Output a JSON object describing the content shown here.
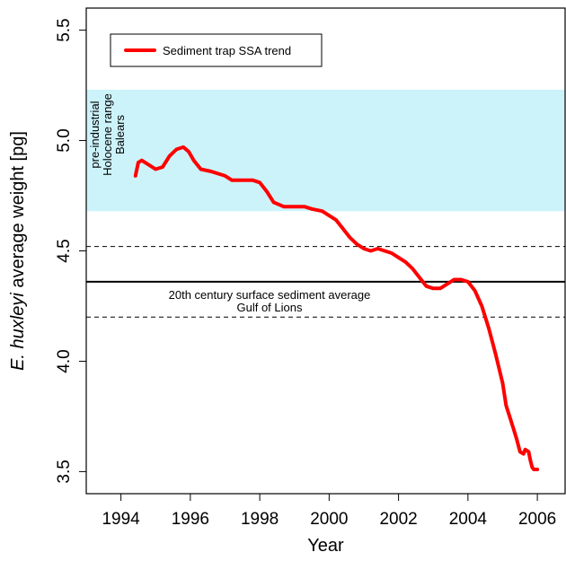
{
  "chart_data": {
    "type": "line",
    "xlabel": "Year",
    "ylabel_italic": "E. huxleyi",
    "ylabel_rest": " average weight [pg]",
    "xlim": [
      1993.0,
      2006.8
    ],
    "ylim": [
      3.4,
      5.6
    ],
    "x_ticks": [
      1994,
      1996,
      1998,
      2000,
      2002,
      2004,
      2006
    ],
    "y_ticks": [
      3.5,
      4.0,
      4.5,
      5.0,
      5.5
    ],
    "y_tick_labels": [
      "3.5",
      "4.0",
      "4.5",
      "5.0",
      "5.5"
    ],
    "legend": {
      "position": "top-left",
      "label": "Sediment trap SSA trend",
      "color": "#ff0000"
    },
    "band": {
      "y_min": 4.68,
      "y_max": 5.23,
      "color": "#cdf3fa",
      "label_lines": [
        "pre-industrial",
        "Holocene range",
        "Balears"
      ]
    },
    "reference_lines": {
      "solid": 4.36,
      "dashed_upper": 4.52,
      "dashed_lower": 4.2,
      "label_lines": [
        "20th century surface sediment average",
        "Gulf of Lions"
      ]
    },
    "series": [
      {
        "name": "Sediment trap SSA trend",
        "color": "#ff0000",
        "x": [
          1994.42,
          1994.5,
          1994.6,
          1994.8,
          1995.0,
          1995.2,
          1995.4,
          1995.6,
          1995.8,
          1995.95,
          1996.1,
          1996.3,
          1996.6,
          1997.0,
          1997.2,
          1997.5,
          1997.8,
          1998.0,
          1998.2,
          1998.4,
          1998.7,
          1999.0,
          1999.3,
          1999.5,
          1999.8,
          2000.0,
          2000.2,
          2000.4,
          2000.6,
          2000.8,
          2001.0,
          2001.2,
          2001.4,
          2001.6,
          2001.8,
          2002.0,
          2002.2,
          2002.4,
          2002.6,
          2002.8,
          2003.0,
          2003.2,
          2003.4,
          2003.6,
          2003.8,
          2004.0,
          2004.2,
          2004.4,
          2004.6,
          2004.8,
          2005.0,
          2005.1,
          2005.2,
          2005.3,
          2005.4,
          2005.5,
          2005.6,
          2005.65,
          2005.75,
          2005.8,
          2005.85,
          2005.9,
          2006.0
        ],
        "y": [
          4.84,
          4.9,
          4.91,
          4.89,
          4.87,
          4.88,
          4.93,
          4.96,
          4.97,
          4.95,
          4.91,
          4.87,
          4.86,
          4.84,
          4.82,
          4.82,
          4.82,
          4.81,
          4.77,
          4.72,
          4.7,
          4.7,
          4.7,
          4.69,
          4.68,
          4.66,
          4.64,
          4.6,
          4.56,
          4.53,
          4.51,
          4.5,
          4.51,
          4.5,
          4.49,
          4.47,
          4.45,
          4.42,
          4.38,
          4.34,
          4.33,
          4.33,
          4.35,
          4.37,
          4.37,
          4.36,
          4.32,
          4.25,
          4.15,
          4.03,
          3.9,
          3.8,
          3.75,
          3.7,
          3.65,
          3.59,
          3.58,
          3.6,
          3.59,
          3.55,
          3.52,
          3.51,
          3.51
        ]
      }
    ]
  }
}
